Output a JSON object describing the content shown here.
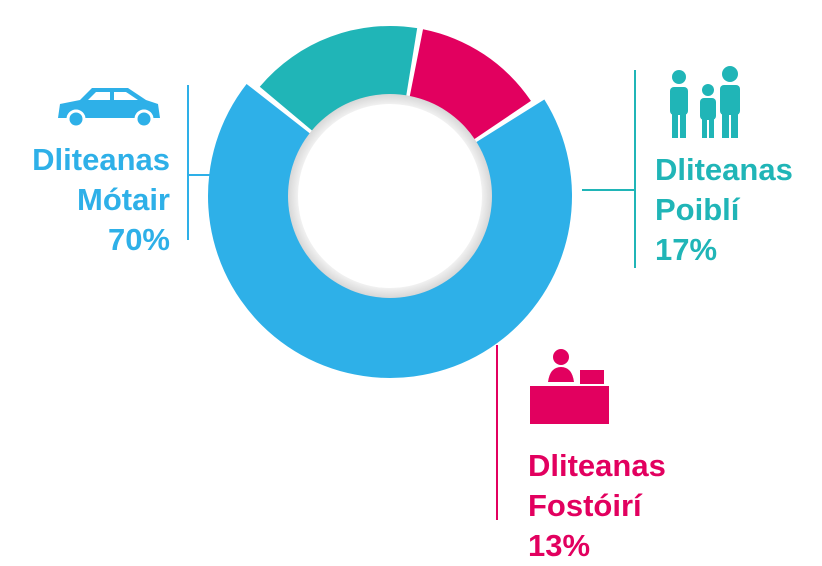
{
  "chart_data": {
    "type": "donut",
    "categories": [
      "Dliteanas Mótair",
      "Dliteanas Poiblí",
      "Dliteanas Fostóirí"
    ],
    "values": [
      70,
      17,
      13
    ],
    "value_labels": [
      "70%",
      "17%",
      "13%"
    ],
    "colors": [
      "#2eb0e8",
      "#20b5b7",
      "#e2005f"
    ]
  }
}
